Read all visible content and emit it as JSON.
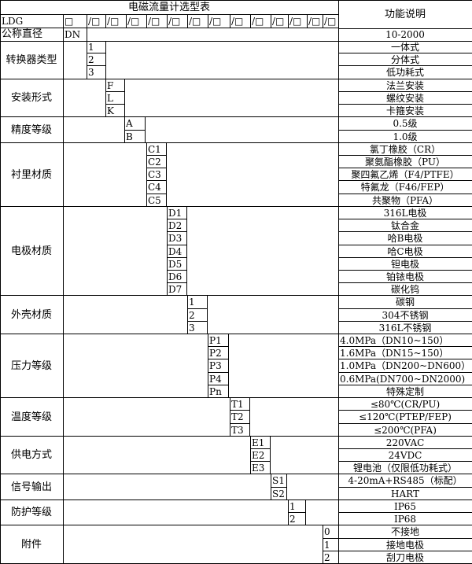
{
  "title": "电磁流量计选型表",
  "function_header": "功能说明",
  "model_row": {
    "prefix": "LDG",
    "slots": [
      "□",
      "/□",
      "/□",
      "/□",
      "/□",
      "/□",
      "/□",
      "/□",
      "/□",
      "/□",
      "/□",
      "/□",
      "/□",
      "/□"
    ]
  },
  "nominal_diameter": {
    "label": "公称直径",
    "code": "DN",
    "function": "10-2000"
  },
  "groups": [
    {
      "label": "转换器类型",
      "codes": [
        "1",
        "2",
        "3"
      ],
      "functions": [
        "一体式",
        "分体式",
        "低功耗式"
      ]
    },
    {
      "label": "安装形式",
      "codes": [
        "F",
        "L",
        "K"
      ],
      "functions": [
        "法兰安装",
        "螺纹安装",
        "卡箍安装"
      ]
    },
    {
      "label": "精度等级",
      "codes": [
        "A",
        "B"
      ],
      "functions": [
        "0.5级",
        "1.0级"
      ]
    },
    {
      "label": "衬里材质",
      "codes": [
        "C1",
        "C2",
        "C3",
        "C4",
        "C5"
      ],
      "functions": [
        "氯丁橡胶（CR）",
        "聚氨酯橡胶（PU）",
        "聚四氟乙烯（F4/PTFE）",
        "特氟龙（F46/FEP）",
        "共聚物（PFA）"
      ]
    },
    {
      "label": "电极材质",
      "codes": [
        "D1",
        "D2",
        "D3",
        "D4",
        "D5",
        "D6",
        "D7"
      ],
      "functions": [
        "316L电极",
        "钛合金",
        "哈B电极",
        "哈C电极",
        "钽电极",
        "铂铱电极",
        "碳化钨"
      ]
    },
    {
      "label": "外壳材质",
      "codes": [
        "1",
        "2",
        "3"
      ],
      "functions": [
        "碳钢",
        "304不锈钢",
        "316L不锈钢"
      ]
    },
    {
      "label": "压力等级",
      "codes": [
        "P1",
        "P2",
        "P3",
        "P4",
        "Pn"
      ],
      "functions": [
        "4.0MPa（DN10~150）",
        "1.6MPa（DN15~150）",
        "1.0MPa（DN200~DN600）",
        "0.6MPa(DN700~DN2000)",
        "特殊定制"
      ]
    },
    {
      "label": "温度等级",
      "codes": [
        "T1",
        "T2",
        "T3"
      ],
      "functions": [
        "≤80℃(CR/PU)",
        "≤120℃(PTEP/FEP)",
        "≤200℃(PFA)"
      ]
    },
    {
      "label": "供电方式",
      "codes": [
        "E1",
        "E2",
        "E3"
      ],
      "functions": [
        "220VAC",
        "24VDC",
        "锂电池（仅限低功耗式）"
      ]
    },
    {
      "label": "信号输出",
      "codes": [
        "S1",
        "S2"
      ],
      "functions": [
        "4-20mA+RS485（标配）",
        "HART"
      ]
    },
    {
      "label": "防护等级",
      "codes": [
        "1",
        "2"
      ],
      "functions": [
        "IP65",
        "IP68"
      ]
    },
    {
      "label": "附件",
      "codes": [
        "0",
        "1",
        "2"
      ],
      "functions": [
        "不接地",
        "接地电极",
        "刮刀电极"
      ]
    }
  ]
}
